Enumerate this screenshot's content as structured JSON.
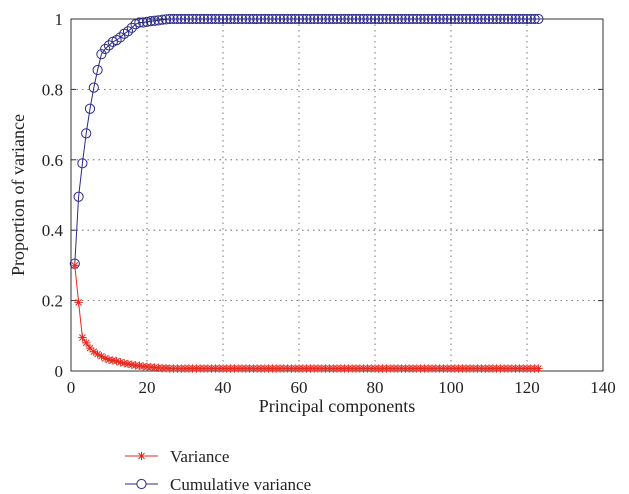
{
  "chart_data": {
    "type": "line",
    "title": "",
    "xlabel": "Principal components",
    "ylabel": "Proportion of variance",
    "xlim": [
      0,
      140
    ],
    "ylim": [
      0,
      1
    ],
    "x_ticks": [
      0,
      20,
      40,
      60,
      80,
      100,
      120,
      140
    ],
    "y_ticks": [
      0,
      0.2,
      0.4,
      0.6,
      0.8,
      1
    ],
    "x_tick_labels": [
      "0",
      "20",
      "40",
      "60",
      "80",
      "100",
      "120",
      "140"
    ],
    "y_tick_labels": [
      "0",
      "0.2",
      "0.4",
      "0.6",
      "0.8",
      "1"
    ],
    "grid": true,
    "legend_position": "bottom-left, below plot",
    "x": [
      1,
      2,
      3,
      4,
      5,
      6,
      7,
      8,
      9,
      10,
      11,
      12,
      13,
      14,
      15,
      16,
      17,
      18,
      19,
      20,
      21,
      22,
      23,
      24,
      25,
      26,
      27,
      28,
      29,
      30,
      31,
      32,
      33,
      34,
      35,
      36,
      37,
      38,
      39,
      40,
      41,
      42,
      43,
      44,
      45,
      46,
      47,
      48,
      49,
      50,
      51,
      52,
      53,
      54,
      55,
      56,
      57,
      58,
      59,
      60,
      61,
      62,
      63,
      64,
      65,
      66,
      67,
      68,
      69,
      70,
      71,
      72,
      73,
      74,
      75,
      76,
      77,
      78,
      79,
      80,
      81,
      82,
      83,
      84,
      85,
      86,
      87,
      88,
      89,
      90,
      91,
      92,
      93,
      94,
      95,
      96,
      97,
      98,
      99,
      100,
      101,
      102,
      103,
      104,
      105,
      106,
      107,
      108,
      109,
      110,
      111,
      112,
      113,
      114,
      115,
      116,
      117,
      118,
      119,
      120,
      121,
      122,
      123
    ],
    "series": [
      {
        "name": "Variance",
        "color": "#e8281e",
        "marker": "asterisk",
        "values": [
          0.3,
          0.195,
          0.095,
          0.08,
          0.065,
          0.055,
          0.048,
          0.042,
          0.036,
          0.032,
          0.03,
          0.028,
          0.025,
          0.022,
          0.02,
          0.018,
          0.016,
          0.015,
          0.013,
          0.012,
          0.011,
          0.01,
          0.009,
          0.008,
          0.008,
          0.007,
          0.007,
          0.007,
          0.007,
          0.007,
          0.007,
          0.007,
          0.007,
          0.007,
          0.007,
          0.007,
          0.007,
          0.007,
          0.007,
          0.007,
          0.007,
          0.007,
          0.007,
          0.007,
          0.007,
          0.007,
          0.007,
          0.007,
          0.007,
          0.007,
          0.007,
          0.007,
          0.007,
          0.007,
          0.007,
          0.007,
          0.007,
          0.007,
          0.007,
          0.007,
          0.007,
          0.007,
          0.007,
          0.007,
          0.007,
          0.007,
          0.007,
          0.007,
          0.007,
          0.007,
          0.007,
          0.007,
          0.007,
          0.007,
          0.007,
          0.007,
          0.007,
          0.007,
          0.007,
          0.007,
          0.007,
          0.007,
          0.007,
          0.007,
          0.007,
          0.007,
          0.007,
          0.007,
          0.007,
          0.007,
          0.007,
          0.007,
          0.007,
          0.007,
          0.007,
          0.007,
          0.007,
          0.007,
          0.007,
          0.007,
          0.007,
          0.007,
          0.007,
          0.007,
          0.007,
          0.007,
          0.007,
          0.007,
          0.007,
          0.007,
          0.007,
          0.007,
          0.007,
          0.007,
          0.007,
          0.007,
          0.007,
          0.007,
          0.007,
          0.007,
          0.007,
          0.007,
          0.007
        ]
      },
      {
        "name": "Cumulative variance",
        "color": "#2b2a8a",
        "marker": "circle",
        "values": [
          0.305,
          0.495,
          0.59,
          0.675,
          0.745,
          0.805,
          0.855,
          0.9,
          0.915,
          0.925,
          0.935,
          0.94,
          0.948,
          0.958,
          0.965,
          0.975,
          0.985,
          0.99,
          0.99,
          0.992,
          0.994,
          0.995,
          0.996,
          0.998,
          0.999,
          1,
          1,
          1,
          1,
          1,
          1,
          1,
          1,
          1,
          1,
          1,
          1,
          1,
          1,
          1,
          1,
          1,
          1,
          1,
          1,
          1,
          1,
          1,
          1,
          1,
          1,
          1,
          1,
          1,
          1,
          1,
          1,
          1,
          1,
          1,
          1,
          1,
          1,
          1,
          1,
          1,
          1,
          1,
          1,
          1,
          1,
          1,
          1,
          1,
          1,
          1,
          1,
          1,
          1,
          1,
          1,
          1,
          1,
          1,
          1,
          1,
          1,
          1,
          1,
          1,
          1,
          1,
          1,
          1,
          1,
          1,
          1,
          1,
          1,
          1,
          1,
          1,
          1,
          1,
          1,
          1,
          1,
          1,
          1,
          1,
          1,
          1,
          1,
          1,
          1,
          1,
          1,
          1,
          1,
          1,
          1,
          1,
          1
        ]
      }
    ]
  }
}
